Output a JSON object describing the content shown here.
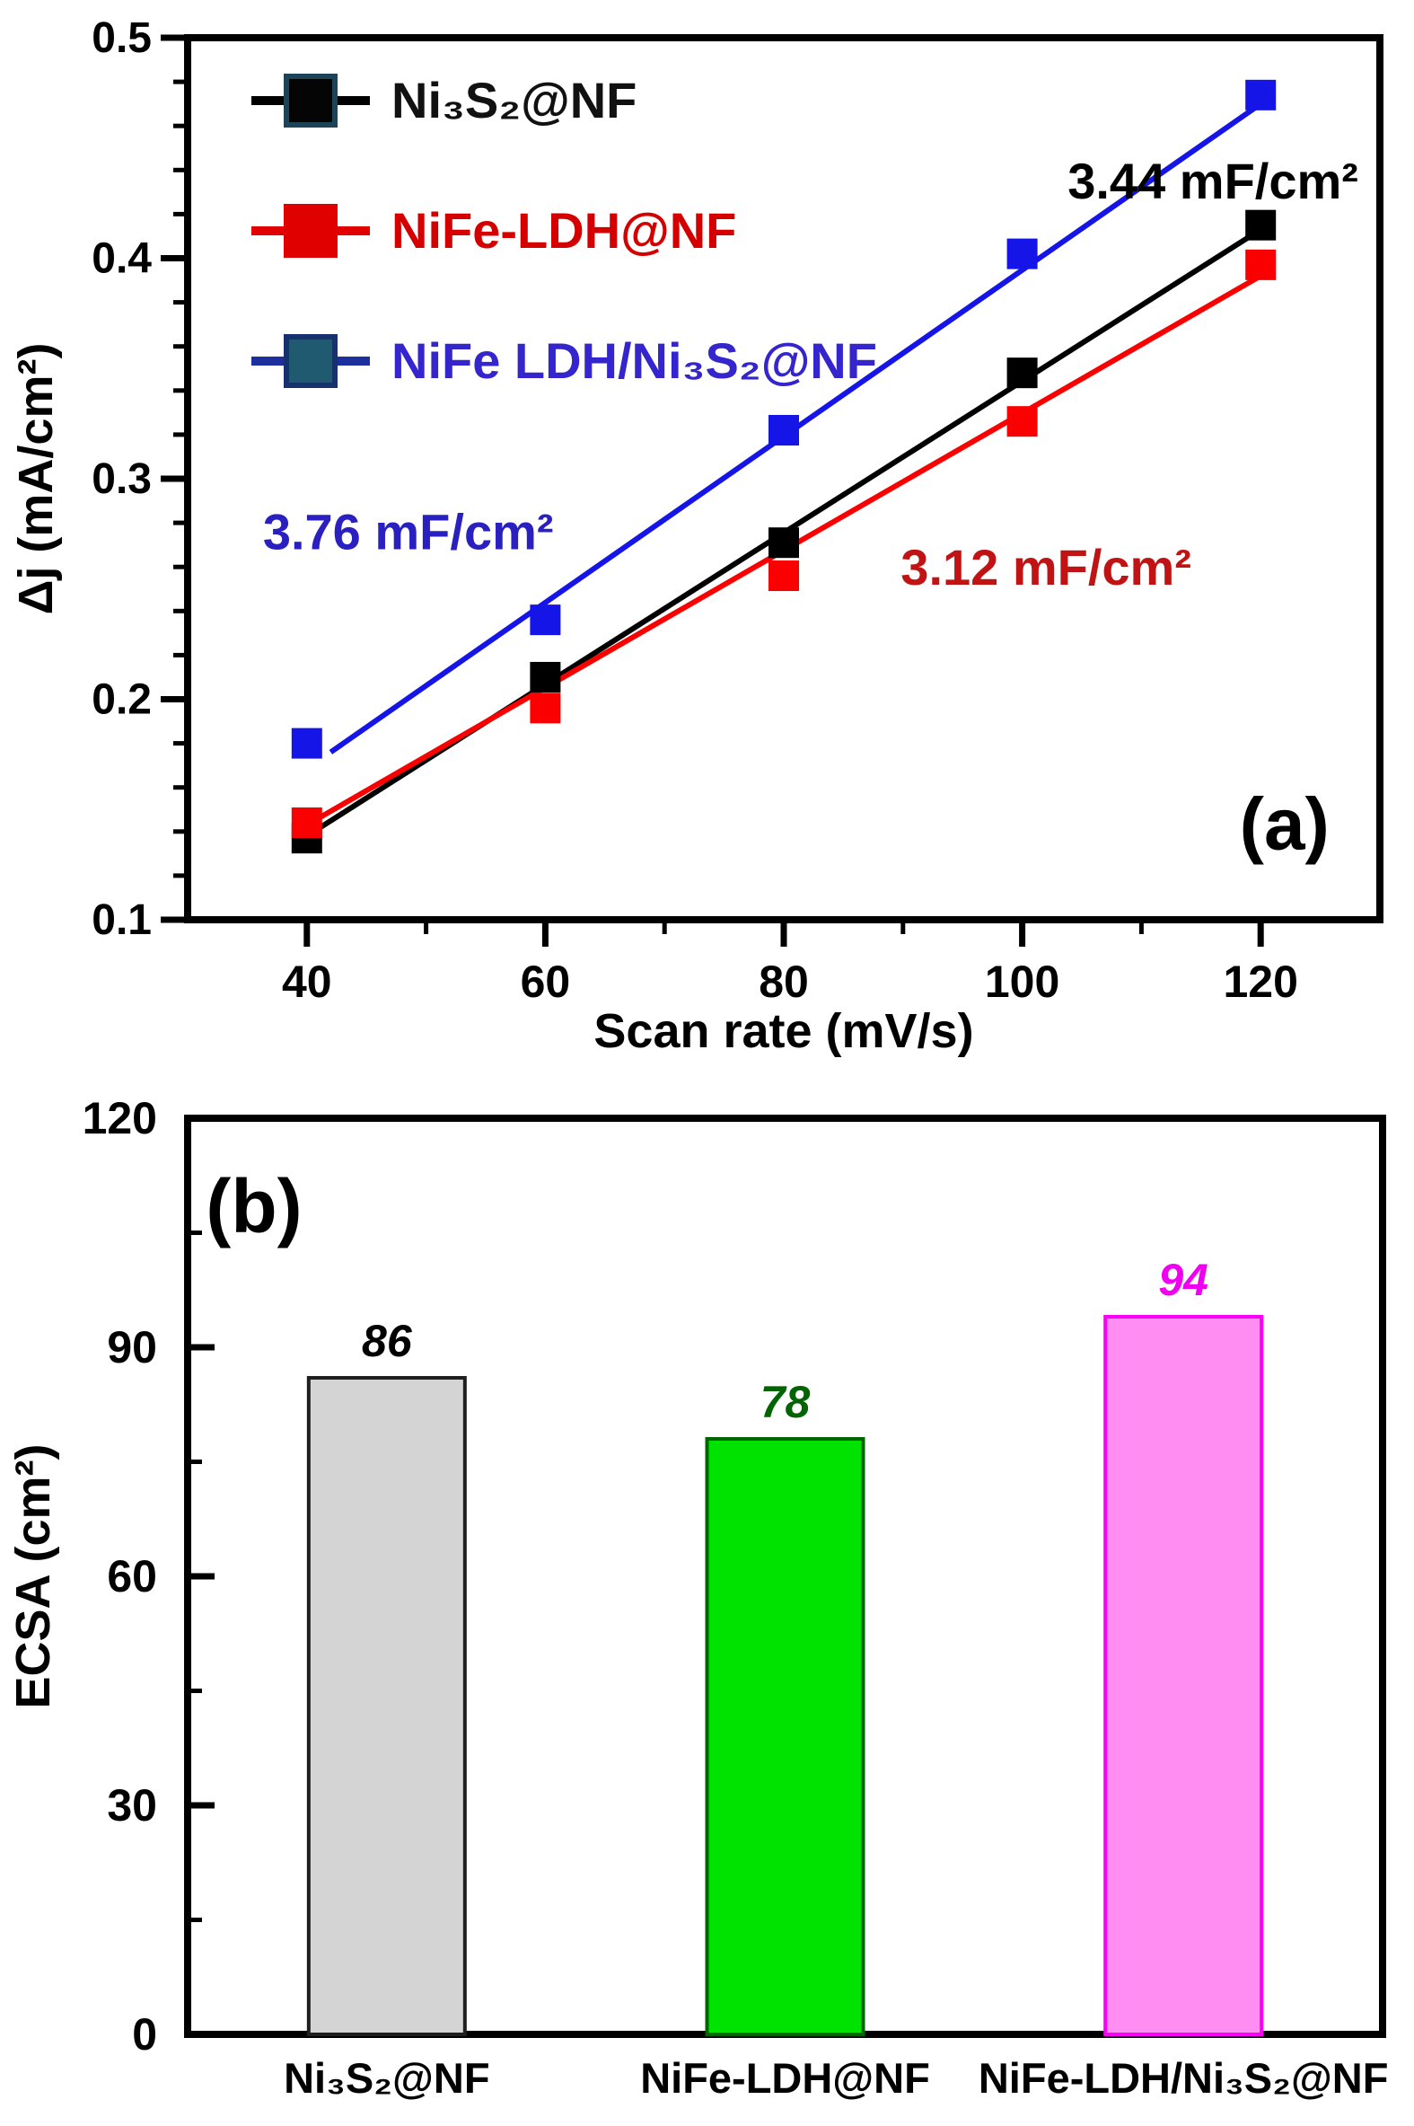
{
  "figure": {
    "description": "Two-panel electrochemistry figure: (a) double-layer capacitance plot, (b) ECSA bar chart"
  },
  "chart_data": [
    {
      "panel": "a",
      "panel_label": "(a)",
      "type": "scatter",
      "xlabel": "Scan rate (mV/s)",
      "ylabel": "Δj (mA/cm²)",
      "xlim": [
        30,
        130
      ],
      "ylim": [
        0.1,
        0.5
      ],
      "xticks": [
        40,
        60,
        80,
        100,
        120
      ],
      "yticks": [
        0.1,
        0.2,
        0.3,
        0.4,
        0.5
      ],
      "ytick_labels": [
        "0.1",
        "0.2",
        "0.3",
        "0.4",
        "0.5"
      ],
      "x_minor_ticks": [
        50,
        70,
        90,
        110
      ],
      "y_minor_step": 0.02,
      "grid": false,
      "legend_position": "top-left inside",
      "series": [
        {
          "name": "Ni₃S₂@NF",
          "color": "#000000",
          "legend_text_color": "#111111",
          "legend_line_color": "#000000",
          "legend_marker_fill": "#050505",
          "legend_marker_stroke": "#1c4456",
          "x": [
            40,
            60,
            80,
            100,
            120
          ],
          "y": [
            0.137,
            0.21,
            0.271,
            0.348,
            0.415
          ],
          "fit_x": [
            40,
            120
          ],
          "fit_y": [
            0.138,
            0.413
          ]
        },
        {
          "name": "NiFe-LDH@NF",
          "color": "#fb0000",
          "legend_text_color": "#d40000",
          "legend_line_color": "#e00000",
          "legend_marker_fill": "#e00000",
          "legend_marker_stroke": "#e00000",
          "x": [
            40,
            60,
            80,
            100,
            120
          ],
          "y": [
            0.144,
            0.196,
            0.256,
            0.326,
            0.397
          ],
          "fit_x": [
            40,
            120
          ],
          "fit_y": [
            0.143,
            0.392
          ]
        },
        {
          "name": "NiFe LDH/Ni₃S₂@NF",
          "color": "#1515e8",
          "legend_text_color": "#3525cd",
          "legend_line_color": "#1c2f9c",
          "legend_marker_fill": "#1f5a70",
          "legend_marker_stroke": "#17316e",
          "x": [
            40,
            60,
            80,
            100,
            120
          ],
          "y": [
            0.18,
            0.236,
            0.322,
            0.402,
            0.474
          ],
          "fit_x": [
            42,
            120
          ],
          "fit_y": [
            0.176,
            0.47
          ]
        }
      ],
      "annotations": [
        {
          "text": "3.44 mF/cm²",
          "color": "#000000",
          "x": 116,
          "y": 0.427
        },
        {
          "text": "3.76 mF/cm²",
          "color": "#2a20c0",
          "x": 48.5,
          "y": 0.268
        },
        {
          "text": "3.12 mF/cm²",
          "color": "#c01414",
          "x": 102,
          "y": 0.252
        },
        {
          "text": "(a)",
          "color": "#000000",
          "x": 122,
          "y": 0.132,
          "is_panel_letter": true
        }
      ]
    },
    {
      "panel": "b",
      "panel_label": "(b)",
      "type": "bar",
      "xlabel": "",
      "ylabel": "ECSA (cm²)",
      "ylim": [
        0,
        120
      ],
      "yticks": [
        0,
        30,
        60,
        90,
        120
      ],
      "ytick_labels": [
        "0",
        "30",
        "60",
        "90",
        "120"
      ],
      "y_minor_ticks": [
        15,
        45,
        75,
        105
      ],
      "grid": false,
      "categories": [
        "Ni₃S₂@NF",
        "NiFe-LDH@NF",
        "NiFe-LDH/Ni₃S₂@NF"
      ],
      "values": [
        86,
        78,
        94
      ],
      "value_labels": [
        "86",
        "78",
        "94"
      ],
      "bar_fill": [
        "#d4d4d4",
        "#00e300",
        "#ff8df2"
      ],
      "bar_stroke": [
        "#1f1f1f",
        "#006400",
        "#fa00fa"
      ],
      "value_label_colors": [
        "#000000",
        "#006400",
        "#f000f0"
      ]
    }
  ]
}
